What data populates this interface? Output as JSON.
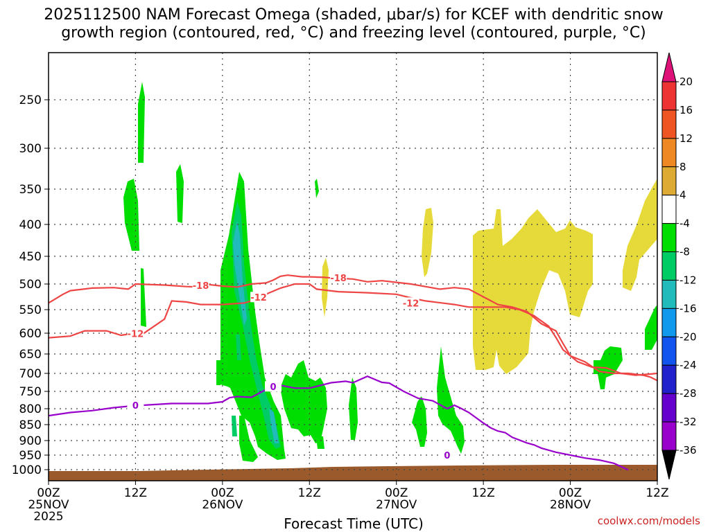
{
  "chart_data": {
    "type": "time-height cross section",
    "title_line1": "2025112500 NAM Forecast Omega (shaded, μbar/s) for KCEF with dendritic snow",
    "title_line2": "growth region (contoured, red, °C) and freezing level (contoured, purple, °C)",
    "xlabel": "Forecast Time (UTC)",
    "credit": "coolwx.com/models",
    "x_ticks": [
      {
        "hour": 0,
        "line1": "00Z",
        "line2": "25NOV",
        "line3": "2025"
      },
      {
        "hour": 12,
        "line1": "12Z",
        "line2": "",
        "line3": ""
      },
      {
        "hour": 24,
        "line1": "00Z",
        "line2": "26NOV",
        "line3": ""
      },
      {
        "hour": 36,
        "line1": "12Z",
        "line2": "",
        "line3": ""
      },
      {
        "hour": 48,
        "line1": "00Z",
        "line2": "27NOV",
        "line3": ""
      },
      {
        "hour": 60,
        "line1": "12Z",
        "line2": "",
        "line3": ""
      },
      {
        "hour": 72,
        "line1": "00Z",
        "line2": "28NOV",
        "line3": ""
      },
      {
        "hour": 84,
        "line1": "12Z",
        "line2": "",
        "line3": ""
      }
    ],
    "x_range_hours": [
      0,
      84
    ],
    "y_levels_hpa": [
      250,
      300,
      350,
      400,
      450,
      500,
      550,
      600,
      650,
      700,
      750,
      800,
      850,
      900,
      950,
      1000
    ],
    "y_range_hpa": [
      200,
      1040
    ],
    "colorbar": {
      "labels": [
        "20",
        "16",
        "12",
        "8",
        "4",
        "-4",
        "-8",
        "-12",
        "-16",
        "-20",
        "-24",
        "-28",
        "-32",
        "-36"
      ],
      "colors": [
        "#dd1177",
        "#ee3333",
        "#ee5522",
        "#ee8822",
        "#ddaa33",
        "#ffffff",
        "#00dd00",
        "#00cc66",
        "#22bbbb",
        "#1199ee",
        "#1155ee",
        "#2222cc",
        "#6600cc",
        "#9900cc",
        "#aaaaaa",
        "#000000"
      ]
    },
    "contour_labels": {
      "minus18": "-18",
      "minus12": "-12",
      "zero": "0"
    },
    "series": [
      {
        "name": "-18C isotherm",
        "color": "#ee4444",
        "points": [
          [
            0,
            537
          ],
          [
            2,
            520
          ],
          [
            3,
            513
          ],
          [
            6,
            508
          ],
          [
            9,
            507
          ],
          [
            11,
            510
          ],
          [
            12,
            500
          ],
          [
            16,
            502
          ],
          [
            19,
            505
          ],
          [
            21,
            506
          ],
          [
            22,
            501
          ],
          [
            24,
            504
          ],
          [
            26,
            506
          ],
          [
            28,
            500
          ],
          [
            30,
            498
          ],
          [
            31,
            493
          ],
          [
            32,
            486
          ],
          [
            33,
            484
          ],
          [
            35,
            487
          ],
          [
            36,
            487
          ],
          [
            38,
            488
          ],
          [
            39,
            489
          ],
          [
            42,
            491
          ],
          [
            44,
            496
          ],
          [
            46,
            494
          ],
          [
            48,
            497
          ],
          [
            50,
            500
          ],
          [
            52,
            505
          ],
          [
            54,
            510
          ],
          [
            56,
            507
          ],
          [
            58,
            510
          ],
          [
            60,
            525
          ],
          [
            62,
            540
          ],
          [
            64,
            545
          ],
          [
            66,
            554
          ],
          [
            68,
            580
          ],
          [
            70,
            595
          ],
          [
            71,
            625
          ],
          [
            72,
            655
          ],
          [
            74,
            670
          ],
          [
            76,
            695
          ],
          [
            78,
            700
          ],
          [
            80,
            700
          ],
          [
            82,
            705
          ],
          [
            83,
            710
          ],
          [
            84,
            720
          ]
        ]
      },
      {
        "name": "-12C isotherm",
        "color": "#ee4444",
        "points": [
          [
            0,
            611
          ],
          [
            3,
            607
          ],
          [
            5,
            595
          ],
          [
            8,
            595
          ],
          [
            10,
            605
          ],
          [
            12,
            600
          ],
          [
            13,
            602
          ],
          [
            16,
            570
          ],
          [
            17,
            533
          ],
          [
            19,
            535
          ],
          [
            21,
            540
          ],
          [
            24,
            540
          ],
          [
            27,
            537
          ],
          [
            28,
            533
          ],
          [
            30,
            520
          ],
          [
            32,
            508
          ],
          [
            34,
            500
          ],
          [
            36,
            500
          ],
          [
            37,
            510
          ],
          [
            40,
            515
          ],
          [
            44,
            517
          ],
          [
            48,
            520
          ],
          [
            50,
            527
          ],
          [
            52,
            533
          ],
          [
            56,
            540
          ],
          [
            58,
            545
          ],
          [
            60,
            545
          ],
          [
            63,
            545
          ],
          [
            65,
            550
          ],
          [
            67,
            563
          ],
          [
            69,
            585
          ],
          [
            70,
            610
          ],
          [
            71,
            640
          ],
          [
            73,
            670
          ],
          [
            75,
            684
          ],
          [
            77,
            686
          ],
          [
            79,
            700
          ],
          [
            81,
            705
          ],
          [
            83,
            702
          ],
          [
            84,
            700
          ]
        ]
      },
      {
        "name": "0C freezing level",
        "color": "#9900cc",
        "points": [
          [
            0,
            822
          ],
          [
            3,
            812
          ],
          [
            6,
            806
          ],
          [
            9,
            797
          ],
          [
            11,
            793
          ],
          [
            13,
            790
          ],
          [
            17,
            785
          ],
          [
            22,
            785
          ],
          [
            24,
            780
          ],
          [
            25,
            768
          ],
          [
            26,
            765
          ],
          [
            28,
            767
          ],
          [
            30,
            745
          ],
          [
            31,
            737
          ],
          [
            32,
            733
          ],
          [
            34,
            741
          ],
          [
            36,
            741
          ],
          [
            39,
            726
          ],
          [
            41,
            722
          ],
          [
            42,
            726
          ],
          [
            44,
            708
          ],
          [
            46,
            725
          ],
          [
            47,
            727
          ],
          [
            49,
            750
          ],
          [
            51,
            770
          ],
          [
            53,
            777
          ],
          [
            55,
            800
          ],
          [
            56,
            790
          ],
          [
            57,
            800
          ],
          [
            58,
            812
          ],
          [
            60,
            845
          ],
          [
            61,
            860
          ],
          [
            62,
            870
          ],
          [
            63,
            875
          ],
          [
            64,
            890
          ],
          [
            66,
            908
          ],
          [
            67,
            915
          ],
          [
            68,
            926
          ],
          [
            70,
            940
          ],
          [
            72,
            950
          ],
          [
            74,
            960
          ],
          [
            76,
            967
          ],
          [
            78,
            978
          ],
          [
            80,
            1001
          ]
        ]
      }
    ]
  }
}
